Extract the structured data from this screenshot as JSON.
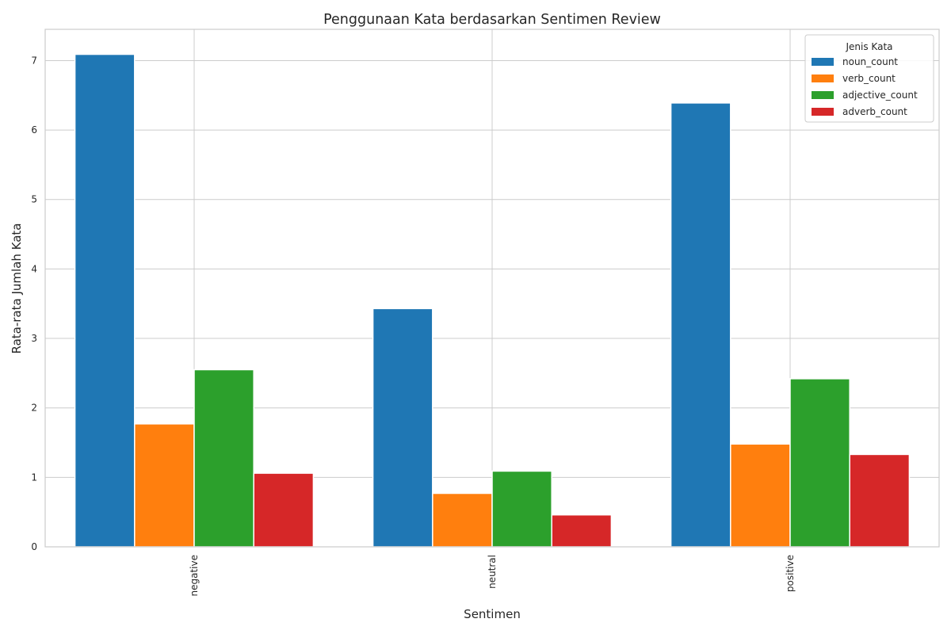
{
  "chart_data": {
    "type": "bar",
    "title": "Penggunaan Kata berdasarkan Sentimen Review",
    "xlabel": "Sentimen",
    "ylabel": "Rata-rata Jumlah Kata",
    "categories": [
      "negative",
      "neutral",
      "positive"
    ],
    "ylim": [
      0,
      7.45
    ],
    "yticks": [
      0,
      1,
      2,
      3,
      4,
      5,
      6,
      7
    ],
    "grid": true,
    "legend": {
      "title": "Jenis Kata",
      "placement": "top-right"
    },
    "series": [
      {
        "name": "noun_count",
        "color": "#1f77b4",
        "values": [
          7.09,
          3.43,
          6.39
        ]
      },
      {
        "name": "verb_count",
        "color": "#ff7f0e",
        "values": [
          1.77,
          0.77,
          1.48
        ]
      },
      {
        "name": "adjective_count",
        "color": "#2ca02c",
        "values": [
          2.55,
          1.09,
          2.42
        ]
      },
      {
        "name": "adverb_count",
        "color": "#d62728",
        "values": [
          1.06,
          0.46,
          1.33
        ]
      }
    ]
  }
}
